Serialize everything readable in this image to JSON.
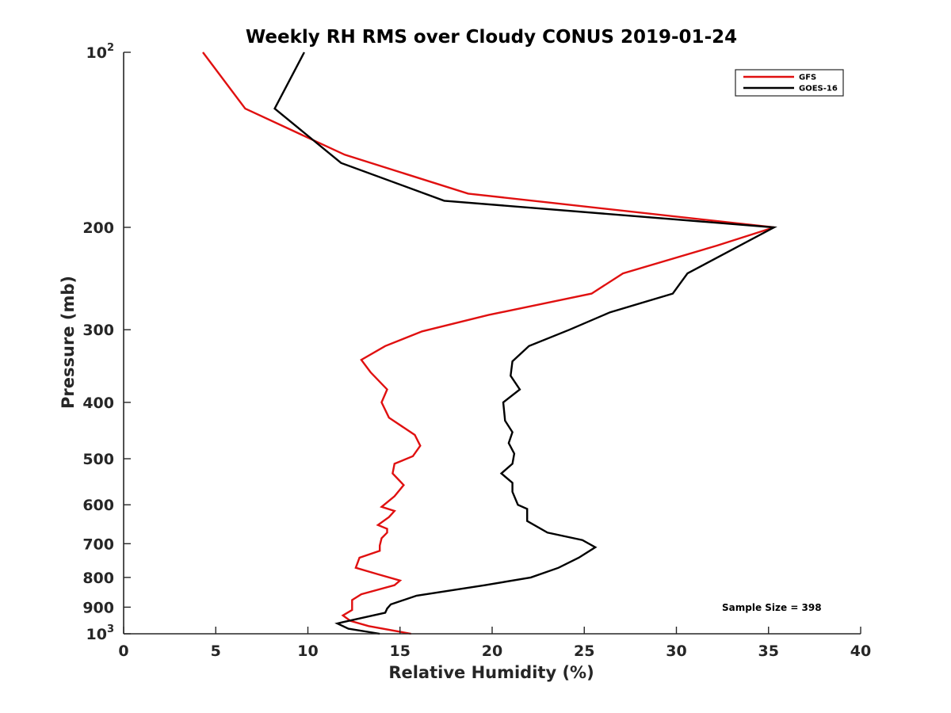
{
  "chart_data": {
    "type": "line",
    "title": "Weekly RH RMS over Cloudy CONUS 2019-01-24",
    "xlabel": "Relative Humidity (%)",
    "ylabel": "Pressure (mb)",
    "xlim": [
      0,
      40
    ],
    "ylim": [
      100,
      1000
    ],
    "y_scale": "log",
    "y_reversed": true,
    "x_ticks": [
      0,
      5,
      10,
      15,
      20,
      25,
      30,
      35,
      40
    ],
    "x_tick_labels": [
      "0",
      "5",
      "10",
      "15",
      "20",
      "25",
      "30",
      "35",
      "40"
    ],
    "y_ticks": [
      100,
      200,
      300,
      400,
      500,
      600,
      700,
      800,
      900,
      1000
    ],
    "y_tick_labels": [
      {
        "base": "10",
        "exp": "2"
      },
      {
        "base": "200",
        "exp": ""
      },
      {
        "base": "300",
        "exp": ""
      },
      {
        "base": "400",
        "exp": ""
      },
      {
        "base": "500",
        "exp": ""
      },
      {
        "base": "600",
        "exp": ""
      },
      {
        "base": "700",
        "exp": ""
      },
      {
        "base": "800",
        "exp": ""
      },
      {
        "base": "900",
        "exp": ""
      },
      {
        "base": "10",
        "exp": "3"
      }
    ],
    "grid": false,
    "legend_position": "top-right",
    "annotation": "Sample Size = 398",
    "series": [
      {
        "name": "GFS",
        "color": "#e01010",
        "points": [
          [
            4.3,
            100
          ],
          [
            6.6,
            125
          ],
          [
            12.0,
            150
          ],
          [
            18.7,
            175
          ],
          [
            35.3,
            200
          ],
          [
            32.2,
            215
          ],
          [
            27.1,
            240
          ],
          [
            25.4,
            260
          ],
          [
            19.8,
            283
          ],
          [
            16.2,
            302
          ],
          [
            14.2,
            320
          ],
          [
            12.9,
            338
          ],
          [
            13.4,
            355
          ],
          [
            14.3,
            380
          ],
          [
            14.0,
            400
          ],
          [
            14.4,
            425
          ],
          [
            15.8,
            455
          ],
          [
            16.1,
            475
          ],
          [
            15.7,
            495
          ],
          [
            14.7,
            510
          ],
          [
            14.6,
            530
          ],
          [
            15.2,
            555
          ],
          [
            14.7,
            580
          ],
          [
            14.0,
            605
          ],
          [
            14.7,
            615
          ],
          [
            14.4,
            630
          ],
          [
            13.8,
            650
          ],
          [
            14.3,
            660
          ],
          [
            14.3,
            670
          ],
          [
            14.0,
            685
          ],
          [
            13.9,
            705
          ],
          [
            13.9,
            720
          ],
          [
            12.8,
            740
          ],
          [
            12.6,
            770
          ],
          [
            13.8,
            790
          ],
          [
            15.0,
            810
          ],
          [
            14.7,
            825
          ],
          [
            12.9,
            855
          ],
          [
            12.4,
            875
          ],
          [
            12.4,
            910
          ],
          [
            11.9,
            930
          ],
          [
            12.3,
            950
          ],
          [
            13.3,
            970
          ],
          [
            15.6,
            1000
          ]
        ]
      },
      {
        "name": "GOES-16",
        "color": "#000000",
        "points": [
          [
            9.8,
            100
          ],
          [
            8.2,
            125
          ],
          [
            11.8,
            155
          ],
          [
            17.4,
            180
          ],
          [
            35.3,
            200
          ],
          [
            30.6,
            240
          ],
          [
            29.8,
            260
          ],
          [
            26.4,
            280
          ],
          [
            24.2,
            300
          ],
          [
            22.0,
            320
          ],
          [
            21.1,
            340
          ],
          [
            21.0,
            360
          ],
          [
            21.5,
            380
          ],
          [
            20.6,
            400
          ],
          [
            20.7,
            430
          ],
          [
            21.1,
            450
          ],
          [
            20.9,
            470
          ],
          [
            21.2,
            490
          ],
          [
            21.1,
            510
          ],
          [
            20.5,
            530
          ],
          [
            21.1,
            550
          ],
          [
            21.1,
            570
          ],
          [
            21.4,
            600
          ],
          [
            21.9,
            610
          ],
          [
            21.9,
            640
          ],
          [
            23.0,
            670
          ],
          [
            24.9,
            690
          ],
          [
            25.6,
            710
          ],
          [
            24.7,
            740
          ],
          [
            23.6,
            770
          ],
          [
            22.1,
            800
          ],
          [
            19.6,
            825
          ],
          [
            15.9,
            860
          ],
          [
            14.5,
            890
          ],
          [
            14.3,
            905
          ],
          [
            14.2,
            920
          ],
          [
            11.9,
            955
          ],
          [
            11.6,
            960
          ],
          [
            12.2,
            980
          ],
          [
            13.9,
            1000
          ]
        ]
      }
    ]
  }
}
